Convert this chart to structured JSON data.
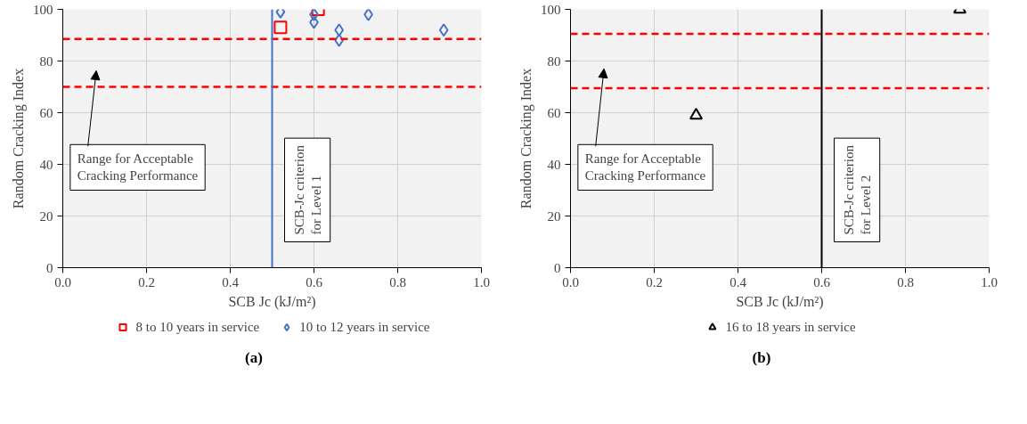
{
  "chart_data": [
    {
      "type": "scatter",
      "title": "(a)",
      "xlabel": "SCB Jc (kJ/m²)",
      "ylabel": "Random Cracking Index",
      "xlim": [
        0,
        1
      ],
      "ylim": [
        0,
        100
      ],
      "xticks": [
        {
          "value": 0,
          "label": "0.0"
        },
        {
          "value": 0.2,
          "label": "0.2"
        },
        {
          "value": 0.4,
          "label": "0.4"
        },
        {
          "value": 0.6,
          "label": "0.6"
        },
        {
          "value": 0.8,
          "label": "0.8"
        },
        {
          "value": 1,
          "label": "1.0"
        }
      ],
      "yticks": [
        0,
        20,
        40,
        60,
        80,
        100
      ],
      "grid": true,
      "legend": "bottom",
      "series": [
        {
          "name": "8 to 10 years in service",
          "color": "#ff0000",
          "marker": "square",
          "x": [
            0.52,
            0.61
          ],
          "values": [
            93,
            100
          ]
        },
        {
          "name": "10 to 12 years in service",
          "color": "#4472c4",
          "marker": "diamond",
          "x": [
            0.52,
            0.6,
            0.6,
            0.66,
            0.66,
            0.73,
            0.91
          ],
          "values": [
            99,
            98,
            95,
            92,
            88,
            98,
            92
          ]
        }
      ],
      "ref_lines": [
        {
          "axis": "y",
          "value": 88.5,
          "color": "#ff0000",
          "line_style": "dashed"
        },
        {
          "axis": "y",
          "value": 70,
          "color": "#ff0000",
          "line_style": "dashed"
        },
        {
          "axis": "x",
          "value": 0.5,
          "color": "#4472c4",
          "line_style": "solid",
          "label": "SCB-Jc criterion for Level 1"
        }
      ],
      "annotations": [
        "Range for Acceptable Cracking Performance"
      ]
    },
    {
      "type": "scatter",
      "title": "(b)",
      "xlabel": "SCB Jc (kJ/m²)",
      "ylabel": "Random Cracking Index",
      "xlim": [
        0,
        1
      ],
      "ylim": [
        0,
        100
      ],
      "xticks": [
        {
          "value": 0,
          "label": "0.0"
        },
        {
          "value": 0.2,
          "label": "0.2"
        },
        {
          "value": 0.4,
          "label": "0.4"
        },
        {
          "value": 0.6,
          "label": "0.6"
        },
        {
          "value": 0.8,
          "label": "0.8"
        },
        {
          "value": 1,
          "label": "1.0"
        }
      ],
      "yticks": [
        0,
        20,
        40,
        60,
        80,
        100
      ],
      "grid": true,
      "legend": "bottom",
      "series": [
        {
          "name": "16 to 18 years in service",
          "color": "#000000",
          "marker": "triangle",
          "x": [
            0.3,
            0.93
          ],
          "values": [
            59,
            100
          ]
        }
      ],
      "ref_lines": [
        {
          "axis": "y",
          "value": 90.5,
          "color": "#ff0000",
          "line_style": "dashed"
        },
        {
          "axis": "y",
          "value": 69.5,
          "color": "#ff0000",
          "line_style": "dashed"
        },
        {
          "axis": "x",
          "value": 0.6,
          "color": "#000000",
          "line_style": "solid",
          "label": "SCB-Jc criterion for Level 2"
        }
      ],
      "annotations": [
        "Range for Acceptable Cracking Performance"
      ]
    }
  ]
}
